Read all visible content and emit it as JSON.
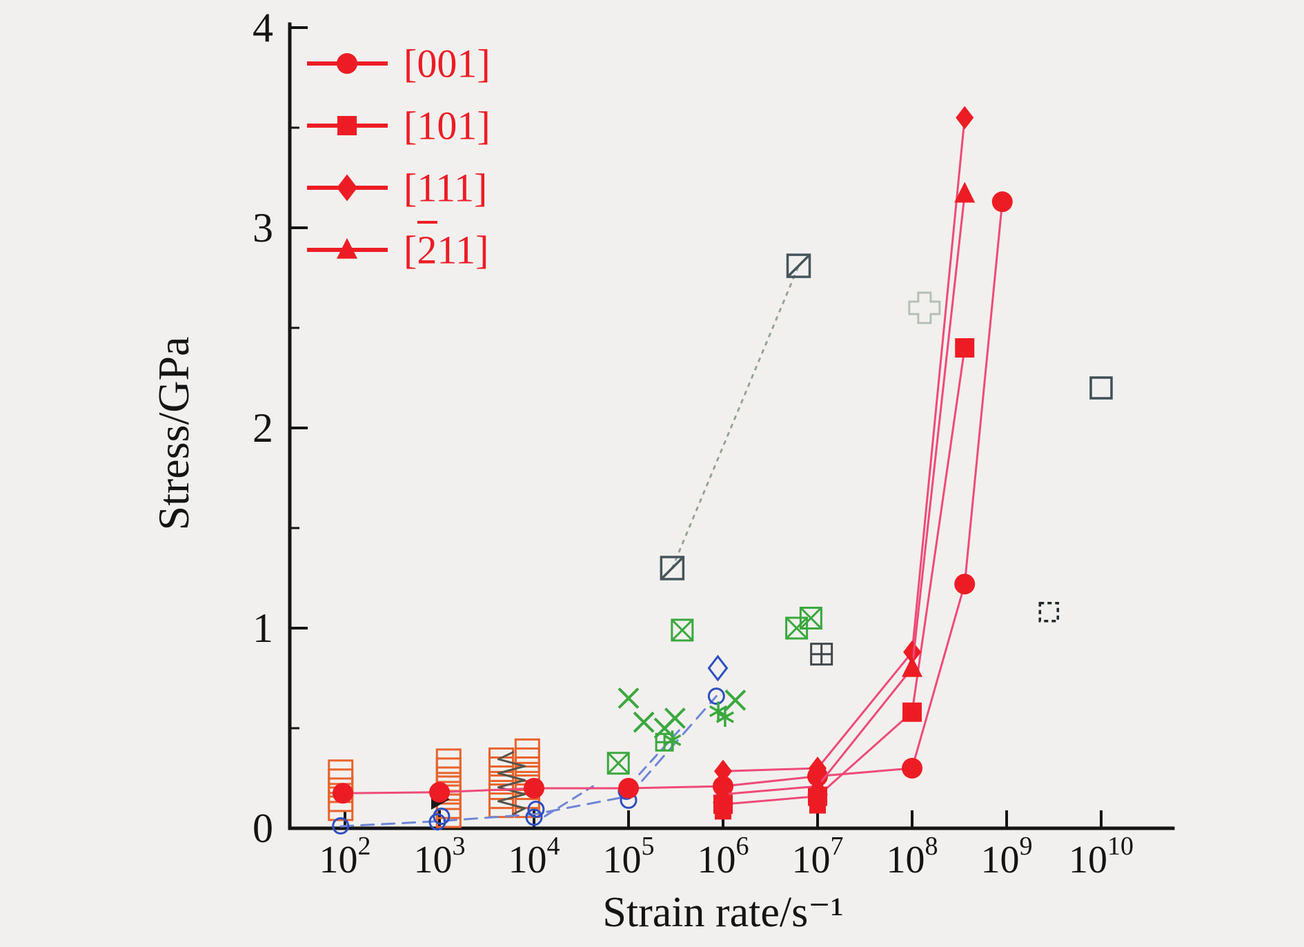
{
  "page": {
    "background": "#f2f0ee"
  },
  "chart_data": {
    "type": "scatter",
    "title": "",
    "xlabel": "Strain rate/s⁻¹",
    "ylabel": "Stress/GPa",
    "xscale": "log",
    "x_tick_base": "10",
    "x_tick_exponents": [
      2,
      3,
      4,
      5,
      6,
      7,
      8,
      9,
      10
    ],
    "ylim": [
      0,
      4
    ],
    "y_ticks": [
      0,
      1,
      2,
      3,
      4
    ],
    "y_minor_step": 0.5,
    "axis_color": "#141414",
    "legend": {
      "position": "top-left",
      "items": [
        {
          "label": "[001]",
          "marker": "circle",
          "size": 15,
          "color": "#ed1c24",
          "overline_index": null
        },
        {
          "label": "[101]",
          "marker": "square",
          "size": 14,
          "color": "#ed1c24",
          "overline_index": null
        },
        {
          "label": "[111]",
          "marker": "diamond",
          "size": 15,
          "color": "#ed1c24",
          "overline_index": null
        },
        {
          "label": "[211]",
          "marker": "triangle-up",
          "size": 15,
          "color": "#ed1c24",
          "overline_index": 1
        }
      ]
    },
    "series": [
      {
        "name": "literature open squares",
        "data_name": "ref-orange-squares",
        "marker": "square-open",
        "size": 17,
        "stroke_width": 3,
        "color": "#e8632c",
        "points": [
          [
            90,
            0.1
          ],
          [
            90,
            0.145
          ],
          [
            90,
            0.19
          ],
          [
            90,
            0.235
          ],
          [
            90,
            0.28
          ],
          [
            1250,
            0.065
          ],
          [
            1250,
            0.11
          ],
          [
            1250,
            0.155
          ],
          [
            1250,
            0.2
          ],
          [
            1250,
            0.245
          ],
          [
            1250,
            0.29
          ],
          [
            1250,
            0.335
          ],
          [
            4500,
            0.115
          ],
          [
            4500,
            0.16
          ],
          [
            4500,
            0.205
          ],
          [
            4500,
            0.25
          ],
          [
            4500,
            0.295
          ],
          [
            4500,
            0.34
          ],
          [
            8500,
            0.115
          ],
          [
            8500,
            0.16
          ],
          [
            8500,
            0.205
          ],
          [
            8500,
            0.25
          ],
          [
            8500,
            0.295
          ],
          [
            8500,
            0.34
          ],
          [
            8500,
            0.385
          ]
        ]
      },
      {
        "name": "zigzag band",
        "data_name": "ref-zigzag",
        "marker": "none",
        "line": {
          "color": "#55544c",
          "width": 3,
          "dash": null
        },
        "points": [
          [
            6000,
            0.38
          ],
          [
            4200,
            0.345
          ],
          [
            8000,
            0.31
          ],
          [
            4200,
            0.275
          ],
          [
            8000,
            0.24
          ],
          [
            4200,
            0.205
          ],
          [
            8000,
            0.17
          ],
          [
            4200,
            0.135
          ],
          [
            8000,
            0.1
          ],
          [
            6000,
            0.07
          ]
        ]
      },
      {
        "name": "black triangle",
        "data_name": "ref-black-triangle",
        "marker": "triangle-right",
        "size": 15,
        "color": "#1a1a1a",
        "points": [
          [
            1000,
            0.145
          ]
        ]
      },
      {
        "name": "blue dashed trend",
        "data_name": "ref-blue-dashed-line",
        "marker": "none",
        "line": {
          "color": "#6e86d8",
          "width": 3,
          "dash": "18 12"
        },
        "points": [
          [
            90,
            0.01
          ],
          [
            950,
            0.035
          ],
          [
            10000,
            0.07
          ],
          [
            100000,
            0.16
          ],
          [
            850000,
            0.66
          ]
        ]
      },
      {
        "name": "blue dash segments",
        "data_name": "ref-blue-dash-segments",
        "marker": "none",
        "line": {
          "color": "#6e86d8",
          "width": 3,
          "dash": "14 10"
        },
        "segments": [
          [
            [
              13000,
              0.06
            ],
            [
              42000,
              0.21
            ]
          ],
          [
            [
              130000,
              0.27
            ],
            [
              360000,
              0.5
            ]
          ]
        ]
      },
      {
        "name": "blue open circles",
        "data_name": "ref-blue-circles",
        "marker": "circle-open",
        "size": 11,
        "stroke_width": 3,
        "color": "#2d4fc0",
        "points": [
          [
            90,
            0.012
          ],
          [
            950,
            0.032
          ],
          [
            1050,
            0.06
          ],
          [
            10000,
            0.055
          ],
          [
            10500,
            0.095
          ],
          [
            100000,
            0.14
          ],
          [
            95000,
            0.185
          ],
          [
            850000,
            0.66
          ]
        ]
      },
      {
        "name": "blue open diamond",
        "data_name": "ref-blue-diamond",
        "marker": "diamond-open",
        "size": 13,
        "stroke_width": 3,
        "color": "#2d4fc0",
        "points": [
          [
            880000,
            0.8
          ]
        ]
      },
      {
        "name": "green x marks",
        "data_name": "ref-green-x",
        "marker": "x",
        "size": 14,
        "stroke_width": 4,
        "color": "#3aa83e",
        "points": [
          [
            100000,
            0.65
          ],
          [
            145000,
            0.53
          ],
          [
            240000,
            0.5
          ],
          [
            310000,
            0.55
          ],
          [
            1350000,
            0.64
          ]
        ]
      },
      {
        "name": "green asterisks",
        "data_name": "ref-green-star",
        "marker": "star6",
        "size": 14,
        "stroke_width": 3.5,
        "color": "#3aa83e",
        "points": [
          [
            290000,
            0.44
          ],
          [
            890000,
            0.585
          ],
          [
            1050000,
            0.555
          ]
        ]
      },
      {
        "name": "green boxed x",
        "data_name": "ref-green-boxtimes",
        "marker": "boxtimes",
        "size": 15,
        "stroke_width": 3,
        "color": "#3aa83e",
        "points": [
          [
            78000,
            0.325
          ],
          [
            370000,
            0.99
          ],
          [
            6000000,
            1.0
          ],
          [
            8500000,
            1.05
          ]
        ]
      },
      {
        "name": "green boxed plus",
        "data_name": "ref-green-boxplus",
        "marker": "boxplus",
        "size": 12,
        "stroke_width": 3,
        "color": "#3aa83e",
        "points": [
          [
            240000,
            0.43
          ]
        ]
      },
      {
        "name": "gray boxed slash",
        "data_name": "ref-gray-boxslash",
        "marker": "boxslash",
        "size": 16,
        "stroke_width": 3.5,
        "color": "#46555b",
        "line": {
          "color": "#95a495",
          "width": 3,
          "dash": "4 9"
        },
        "points": [
          [
            290000,
            1.3
          ],
          [
            6300000,
            2.81
          ]
        ]
      },
      {
        "name": "gray boxed plus",
        "data_name": "ref-gray-boxplus",
        "marker": "boxplus",
        "size": 15,
        "stroke_width": 3,
        "color": "#40484c",
        "points": [
          [
            11000000,
            0.87
          ]
        ]
      },
      {
        "name": "gray open cross",
        "data_name": "ref-gray-cross",
        "marker": "plus-open",
        "size": 22,
        "stroke_width": 3,
        "color": "#b5bfb5",
        "points": [
          [
            135000000,
            2.6
          ]
        ]
      },
      {
        "name": "gray open square",
        "data_name": "ref-gray-square",
        "marker": "square-open",
        "size": 15,
        "stroke_width": 3.5,
        "color": "#3e4e56",
        "points": [
          [
            10000000000.0,
            2.2
          ]
        ]
      },
      {
        "name": "dashed open square",
        "data_name": "ref-dashed-square",
        "marker": "square-open-dashed",
        "size": 13,
        "stroke_width": 3.5,
        "color": "#20262a",
        "points": [
          [
            2800000000.0,
            1.08
          ]
        ]
      },
      {
        "name": "red extra squares",
        "data_name": "series-101-extra",
        "marker": "square",
        "size": 12,
        "color": "#ed1c24",
        "points": [
          [
            1000000,
            0.085
          ],
          [
            10000000,
            0.115
          ]
        ]
      },
      {
        "name": "[001]",
        "data_name": "series-001",
        "marker": "circle",
        "size": 15,
        "color": "#ed1c24",
        "line": {
          "color": "#ee4a78",
          "width": 3,
          "dash": null
        },
        "points": [
          [
            95,
            0.175
          ],
          [
            1000,
            0.18
          ],
          [
            10000,
            0.2
          ],
          [
            100000,
            0.2
          ],
          [
            1000000,
            0.21
          ],
          [
            10000000,
            0.26
          ],
          [
            100000000,
            0.3
          ],
          [
            360000000,
            1.22
          ],
          [
            900000000,
            3.13
          ]
        ]
      },
      {
        "name": "[101]",
        "data_name": "series-101",
        "marker": "square",
        "size": 14,
        "color": "#ed1c24",
        "line": {
          "color": "#ee4a78",
          "width": 3,
          "dash": null
        },
        "points": [
          [
            1000000,
            0.12
          ],
          [
            10000000,
            0.16
          ],
          [
            100000000,
            0.58
          ],
          [
            360000000,
            2.4
          ]
        ]
      },
      {
        "name": "[111]",
        "data_name": "series-111",
        "marker": "diamond",
        "size": 13,
        "color": "#ed1c24",
        "line": {
          "color": "#ee4a78",
          "width": 3,
          "dash": null
        },
        "points": [
          [
            1000000,
            0.285
          ],
          [
            10000000,
            0.3
          ],
          [
            100000000,
            0.88
          ],
          [
            360000000,
            3.55
          ]
        ]
      },
      {
        "name": "[211]",
        "data_name": "series-211",
        "marker": "triangle-up",
        "size": 15,
        "color": "#ed1c24",
        "line": {
          "color": "#ee4a78",
          "width": 3,
          "dash": null
        },
        "points": [
          [
            1000000,
            0.17
          ],
          [
            10000000,
            0.21
          ],
          [
            100000000,
            0.8
          ],
          [
            360000000,
            3.17
          ]
        ]
      }
    ]
  }
}
